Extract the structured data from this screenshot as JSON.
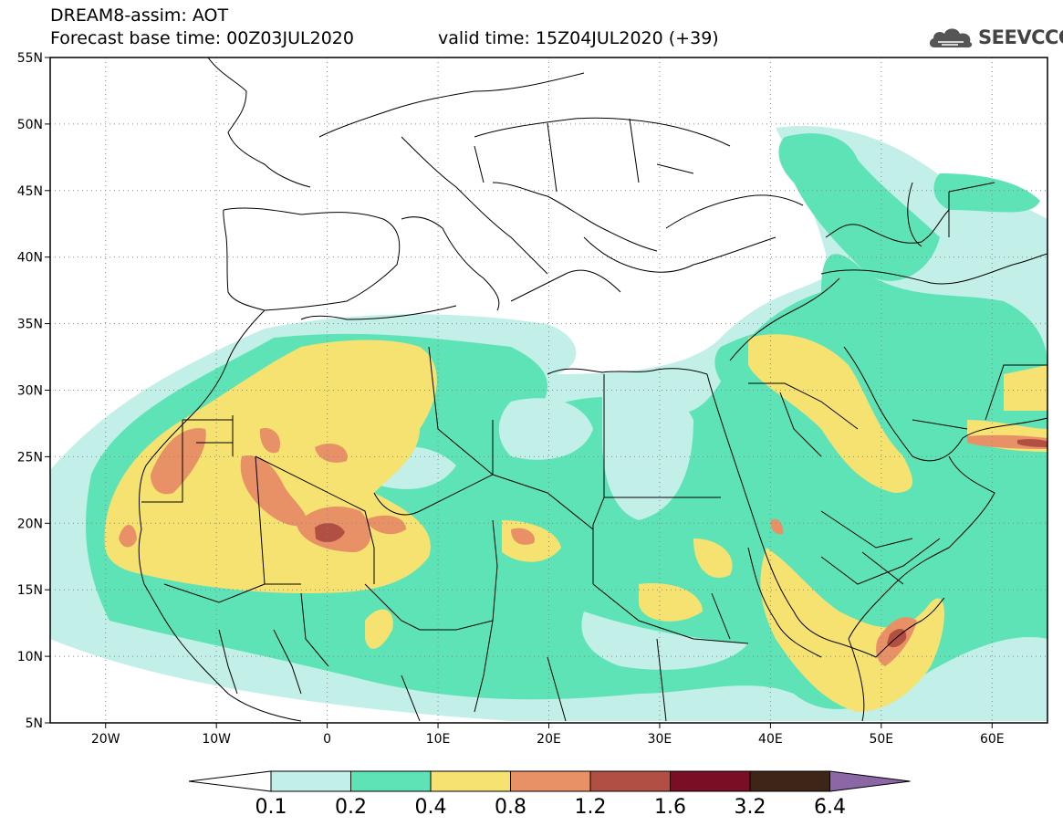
{
  "header": {
    "line1": "DREAM8-assim: AOT",
    "line2": "Forecast base time: 00Z03JUL2020",
    "valid": "valid time: 15Z04JUL2020 (+39)"
  },
  "logo": {
    "text": "SEEVCCC",
    "icon": "cloud-logo-icon"
  },
  "map": {
    "variable": "AOT",
    "lon_range": [
      -25,
      65
    ],
    "lat_range": [
      5,
      55
    ],
    "lat_labels": [
      "55N",
      "50N",
      "45N",
      "40N",
      "35N",
      "30N",
      "25N",
      "20N",
      "15N",
      "10N",
      "5N"
    ],
    "lon_labels": [
      "20W",
      "10W",
      "0",
      "10E",
      "20E",
      "30E",
      "40E",
      "50E",
      "60E"
    ],
    "grid": "dotted"
  },
  "colorbar": {
    "labels": [
      "0.1",
      "0.2",
      "0.4",
      "0.8",
      "1.2",
      "1.6",
      "3.2",
      "6.4"
    ],
    "colors": [
      "#ffffff",
      "#c2efe7",
      "#5ee3b7",
      "#f5e271",
      "#e89066",
      "#b14f43",
      "#7a0e25",
      "#3d2517",
      "#8c67a6"
    ]
  }
}
